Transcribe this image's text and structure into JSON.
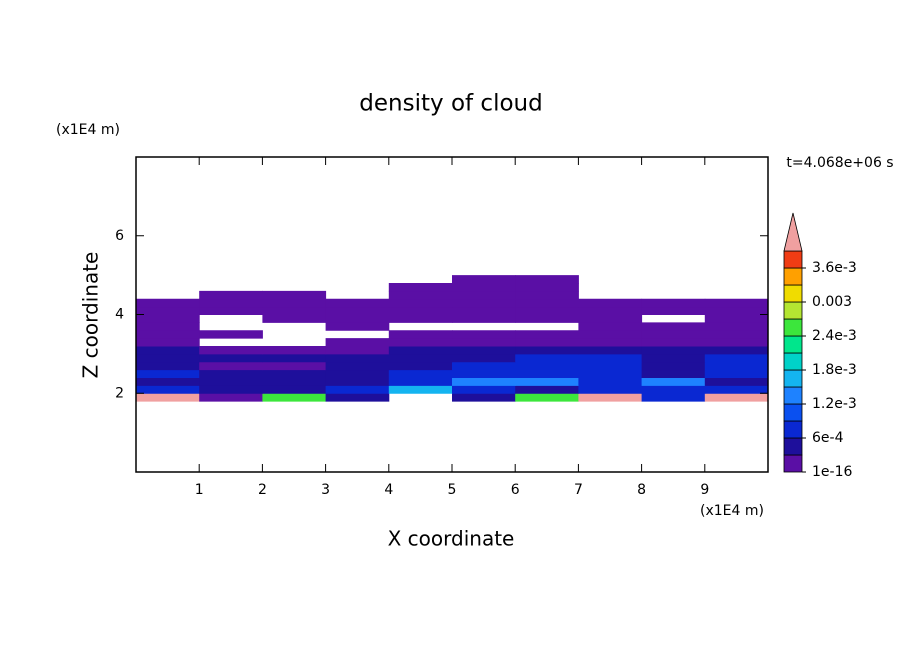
{
  "chart_data": {
    "type": "contour",
    "title": "density of cloud",
    "x_label": "X coordinate",
    "y_label": "Z coordinate",
    "x_unit": "(x1E4 m)",
    "y_unit": "(x1E4 m)",
    "time_label": "t=4.068e+06 s",
    "xlim": [
      0,
      10
    ],
    "ylim": [
      0,
      8
    ],
    "xticks": [
      1,
      2,
      3,
      4,
      5,
      6,
      7,
      8,
      9
    ],
    "yticks": [
      2,
      4,
      6
    ],
    "x": [
      0.5,
      1.5,
      2.5,
      3.5,
      4.5,
      5.5,
      6.5,
      7.5,
      8.5,
      9.5
    ],
    "y": [
      1.9,
      2.1,
      2.3,
      2.5,
      2.7,
      2.9,
      3.1,
      3.3,
      3.5,
      3.7,
      3.9,
      4.1,
      4.3,
      4.5,
      4.7,
      4.9
    ],
    "z": [
      [
        0.004,
        0.0001,
        0.0025,
        0.0004,
        null,
        0.0004,
        0.0025,
        0.004,
        0.0007,
        0.004
      ],
      [
        0.0007,
        0.0004,
        0.0004,
        0.0007,
        0.0016,
        0.0007,
        0.0004,
        0.0007,
        0.0007,
        0.0007
      ],
      [
        0.0004,
        0.0004,
        0.0004,
        0.0004,
        0.0007,
        0.0013,
        0.0013,
        0.0007,
        0.0013,
        0.0004
      ],
      [
        0.0007,
        0.0004,
        0.0004,
        0.0004,
        0.0007,
        0.0007,
        0.0007,
        0.0007,
        0.0004,
        0.0007
      ],
      [
        0.0004,
        0.0001,
        0.0001,
        0.0004,
        0.0004,
        0.0007,
        0.0007,
        0.0007,
        0.0004,
        0.0007
      ],
      [
        0.0004,
        0.0004,
        0.0004,
        0.0004,
        0.0004,
        0.0004,
        0.0007,
        0.0007,
        0.0004,
        0.0007
      ],
      [
        0.0004,
        0.0001,
        0.0001,
        0.0001,
        0.0004,
        0.0004,
        0.0004,
        0.0004,
        0.0004,
        0.0004
      ],
      [
        0.0001,
        null,
        null,
        0.0001,
        0.0001,
        0.0001,
        0.0001,
        0.0001,
        0.0001,
        0.0001
      ],
      [
        0.0001,
        0.0001,
        null,
        null,
        0.0001,
        0.0001,
        0.0001,
        0.0001,
        0.0001,
        0.0001
      ],
      [
        0.0001,
        null,
        null,
        0.0001,
        null,
        null,
        null,
        0.0001,
        0.0001,
        0.0001
      ],
      [
        0.0001,
        null,
        0.0001,
        0.0001,
        0.0001,
        0.0001,
        0.0001,
        0.0001,
        null,
        0.0001
      ],
      [
        0.0001,
        0.0001,
        0.0001,
        0.0001,
        0.0001,
        0.0001,
        0.0001,
        0.0001,
        0.0001,
        0.0001
      ],
      [
        0.0001,
        0.0001,
        0.0001,
        0.0001,
        0.0001,
        0.0001,
        0.0001,
        0.0001,
        0.0001,
        0.0001
      ],
      [
        null,
        0.0001,
        0.0001,
        null,
        0.0001,
        0.0001,
        0.0001,
        null,
        null,
        null
      ],
      [
        null,
        null,
        null,
        null,
        0.0001,
        0.0001,
        0.0001,
        null,
        null,
        null
      ],
      [
        null,
        null,
        null,
        null,
        null,
        0.0001,
        0.0001,
        null,
        null,
        null
      ]
    ],
    "levels": [
      1e-16,
      0.0003,
      0.0006,
      0.0009,
      0.0012,
      0.0015,
      0.0018,
      0.0021,
      0.0024,
      0.0027,
      0.003,
      0.0033,
      0.0036,
      0.0039
    ],
    "colors": [
      "#5a0fa5",
      "#1e0f9b",
      "#0a28d2",
      "#0a50f0",
      "#1e82ff",
      "#14b4f0",
      "#00d2c8",
      "#00e68c",
      "#3ce63c",
      "#b4e632",
      "#f0dc00",
      "#ffa000",
      "#f03c14"
    ],
    "over_color": "#f0a0a0",
    "colorbar_ticks": [
      {
        "value": 1e-16,
        "label": "1e-16"
      },
      {
        "value": 0.0006,
        "label": "6e-4"
      },
      {
        "value": 0.0012,
        "label": "1.2e-3"
      },
      {
        "value": 0.0018,
        "label": "1.8e-3"
      },
      {
        "value": 0.0024,
        "label": "2.4e-3"
      },
      0.003,
      {
        "value": 0.0036,
        "label": "3.6e-3"
      }
    ]
  }
}
